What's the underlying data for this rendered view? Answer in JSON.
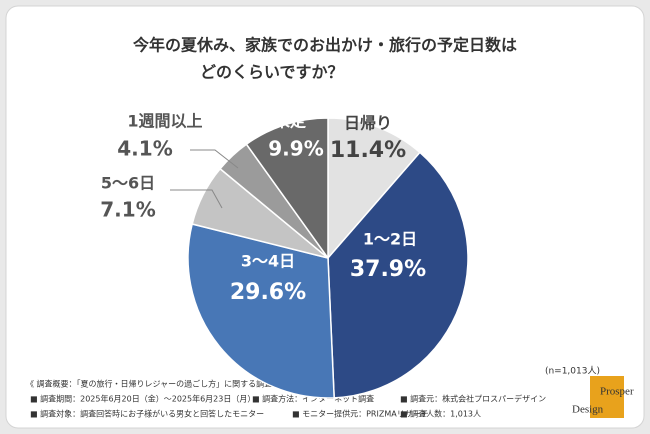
{
  "chart_data": {
    "type": "pie",
    "title_lines": [
      "今年の夏休み、家族でのお出かけ・旅行の予定日数は",
      "どのくらいですか？"
    ],
    "categories": [
      "日帰り",
      "1〜2日",
      "3〜4日",
      "5〜6日",
      "1週間以上",
      "未定"
    ],
    "values": [
      11.4,
      37.9,
      29.6,
      7.1,
      4.1,
      9.9
    ],
    "value_labels": [
      "11.4%",
      "37.9%",
      "29.6%",
      "7.1%",
      "4.1%",
      "9.9%"
    ],
    "colors": [
      "#e2e2e2",
      "#2d4a86",
      "#4877b6",
      "#c4c4c4",
      "#9b9b9b",
      "#696969"
    ],
    "sample_note": "(n=1,013人)"
  },
  "footer": {
    "heading": "《 調査概要：「夏の旅行・日帰りレジャーの過ごし方」に関する調査 》",
    "items": [
      "■ 調査期間：2025年6月20日（金）～2025年6月23日（月）",
      "■ 調査方法：インターネット調査",
      "■ 調査元：株式会社プロスパーデザイン",
      "■ 調査対象：調査回答時にお子様がいる男女と回答したモニター",
      "■ モニター提供元：PRIZMAリサーチ",
      "■ 調査人数：1,013人"
    ]
  },
  "logo": [
    "Prosper",
    "Design"
  ]
}
